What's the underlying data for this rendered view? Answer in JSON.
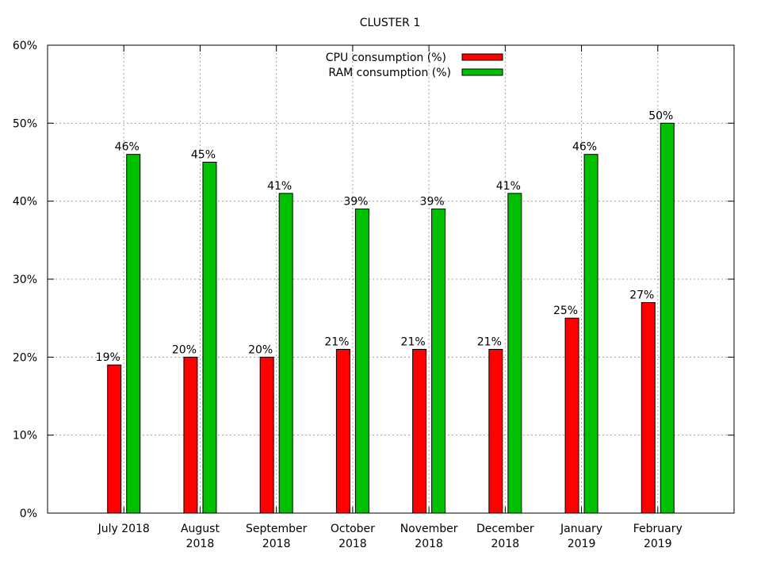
{
  "chart_data": {
    "type": "bar",
    "title": "CLUSTER 1",
    "xlabel": "",
    "ylabel": "",
    "ylim": [
      0,
      60
    ],
    "yticks": [
      "0%",
      "10%",
      "20%",
      "30%",
      "40%",
      "50%",
      "60%"
    ],
    "grid": true,
    "legend_position": "top-center",
    "categories": [
      [
        "July 2018"
      ],
      [
        "August",
        "2018"
      ],
      [
        "September",
        "2018"
      ],
      [
        "October",
        "2018"
      ],
      [
        "November",
        "2018"
      ],
      [
        "December",
        "2018"
      ],
      [
        "January",
        "2019"
      ],
      [
        "February",
        "2019"
      ]
    ],
    "series": [
      {
        "name": "CPU consumption (%)",
        "color": "#ff0000",
        "values": [
          19,
          20,
          20,
          21,
          21,
          21,
          25,
          27
        ],
        "labels": [
          "19%",
          "20%",
          "20%",
          "21%",
          "21%",
          "21%",
          "25%",
          "27%"
        ]
      },
      {
        "name": "RAM consumption (%)",
        "color": "#00c000",
        "values": [
          46,
          45,
          41,
          39,
          39,
          41,
          46,
          50
        ],
        "labels": [
          "46%",
          "45%",
          "41%",
          "39%",
          "39%",
          "41%",
          "46%",
          "50%"
        ]
      }
    ]
  }
}
